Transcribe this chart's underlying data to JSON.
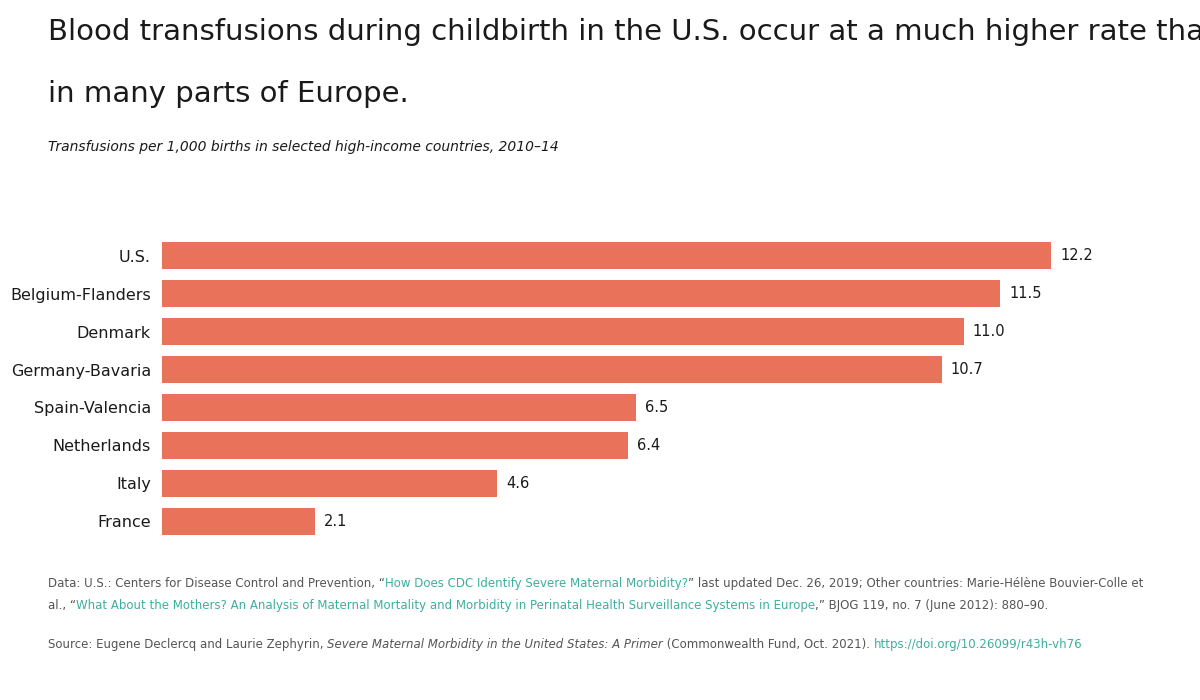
{
  "title_line1": "Blood transfusions during childbirth in the U.S. occur at a much higher rate than",
  "title_line2": "in many parts of Europe.",
  "subtitle": "Transfusions per 1,000 births in selected high-income countries, 2010–14",
  "categories": [
    "U.S.",
    "Belgium-Flanders",
    "Denmark",
    "Germany-Bavaria",
    "Spain-Valencia",
    "Netherlands",
    "Italy",
    "France"
  ],
  "values": [
    12.2,
    11.5,
    11.0,
    10.7,
    6.5,
    6.4,
    4.6,
    2.1
  ],
  "bar_color": "#E8725A",
  "background_color": "#FFFFFF",
  "link_color": "#3DAE9F",
  "text_color": "#1a1a1a",
  "note_color": "#555555",
  "xlim": [
    0,
    13.5
  ],
  "data_note_line1_black1": "Data: U.S.: Centers for Disease Control and Prevention, “",
  "data_note_line1_link": "How Does CDC Identify Severe Maternal Morbidity?",
  "data_note_line1_black2": "” last updated Dec. 26, 2019; Other countries: Marie-Hélène Bouvier-Colle et",
  "data_note_line2_black1": "al., “",
  "data_note_line2_link": "What About the Mothers? An Analysis of Maternal Mortality and Morbidity in Perinatal Health Surveillance Systems in Europe",
  "data_note_line2_black2": ",” BJOG 119, no. 7 (June 2012): 880–90.",
  "source_black1": "Source: Eugene Declercq and Laurie Zephyrin, ",
  "source_italic": "Severe Maternal Morbidity in the United States: A Primer",
  "source_black2": " (Commonwealth Fund, Oct. 2021). ",
  "source_link": "https://doi.org/10.26099/r43h-vh76"
}
